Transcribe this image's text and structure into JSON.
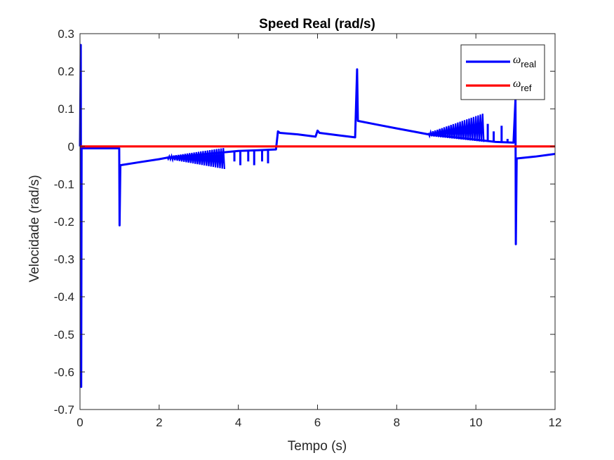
{
  "chart_data": {
    "type": "line",
    "title": "Speed Real (rad/s)",
    "xlabel": "Tempo (s)",
    "ylabel": "Velocidade (rad/s)",
    "xlim": [
      0,
      12
    ],
    "ylim": [
      -0.7,
      0.3
    ],
    "xticks": [
      0,
      2,
      4,
      6,
      8,
      10,
      12
    ],
    "xtick_labels": [
      "0",
      "2",
      "4",
      "6",
      "8",
      "10",
      "12"
    ],
    "yticks": [
      0.3,
      0.2,
      0.1,
      0,
      -0.1,
      -0.2,
      -0.3,
      -0.4,
      -0.5,
      -0.6,
      -0.7
    ],
    "ytick_labels": [
      "0.3",
      "0.2",
      "0.1",
      "0",
      "-0.1",
      "-0.2",
      "-0.3",
      "-0.4",
      "-0.5",
      "-0.6",
      "-0.7"
    ],
    "grid": false,
    "legend_position": "top-right",
    "series": [
      {
        "name": "ω",
        "subscript": "real",
        "color": "#0000ff",
        "points": [
          [
            0,
            0
          ],
          [
            0.02,
            0.27
          ],
          [
            0.03,
            -0.64
          ],
          [
            0.04,
            0.0
          ],
          [
            0.06,
            -0.005
          ],
          [
            0.5,
            -0.005
          ],
          [
            0.99,
            -0.005
          ],
          [
            1.0,
            -0.21
          ],
          [
            1.02,
            -0.05
          ],
          [
            1.5,
            -0.042
          ],
          [
            2.0,
            -0.034
          ],
          [
            2.2,
            -0.03
          ],
          [
            4.0,
            -0.012
          ],
          [
            4.5,
            -0.01
          ],
          [
            4.95,
            -0.008
          ],
          [
            5.0,
            0.04
          ],
          [
            5.05,
            0.036
          ],
          [
            5.5,
            0.032
          ],
          [
            5.95,
            0.026
          ],
          [
            6.0,
            0.042
          ],
          [
            6.05,
            0.036
          ],
          [
            6.5,
            0.03
          ],
          [
            6.95,
            0.024
          ],
          [
            7.0,
            0.205
          ],
          [
            7.02,
            0.068
          ],
          [
            7.5,
            0.058
          ],
          [
            8.0,
            0.048
          ],
          [
            8.5,
            0.038
          ],
          [
            8.8,
            0.032
          ],
          [
            10.5,
            0.012
          ],
          [
            10.95,
            0.01
          ],
          [
            11.0,
            0.125
          ],
          [
            11.01,
            -0.26
          ],
          [
            11.03,
            -0.032
          ],
          [
            11.5,
            -0.027
          ],
          [
            12.0,
            -0.02
          ]
        ],
        "oscillation_bands": [
          {
            "x": [
              2.2,
              3.65
            ],
            "center_start": -0.03,
            "center_end": -0.032,
            "amplitude_start": 0.003,
            "amplitude_end": 0.028
          },
          {
            "x": [
              8.8,
              10.2
            ],
            "center_start": 0.032,
            "center_end": 0.05,
            "amplitude_start": 0.004,
            "amplitude_end": 0.038
          }
        ],
        "spikes": [
          {
            "x": 3.9,
            "y": -0.04
          },
          {
            "x": 4.05,
            "y": -0.05
          },
          {
            "x": 4.25,
            "y": -0.04
          },
          {
            "x": 4.4,
            "y": -0.05
          },
          {
            "x": 4.6,
            "y": -0.04
          },
          {
            "x": 4.75,
            "y": -0.045
          },
          {
            "x": 10.3,
            "y": 0.06
          },
          {
            "x": 10.45,
            "y": 0.04
          },
          {
            "x": 10.55,
            "y": 0.01
          },
          {
            "x": 10.65,
            "y": 0.055
          },
          {
            "x": 10.8,
            "y": 0.02
          }
        ]
      },
      {
        "name": "ω",
        "subscript": "ref",
        "color": "#ff0000",
        "points": [
          [
            0,
            0
          ],
          [
            12,
            0
          ]
        ]
      }
    ]
  }
}
